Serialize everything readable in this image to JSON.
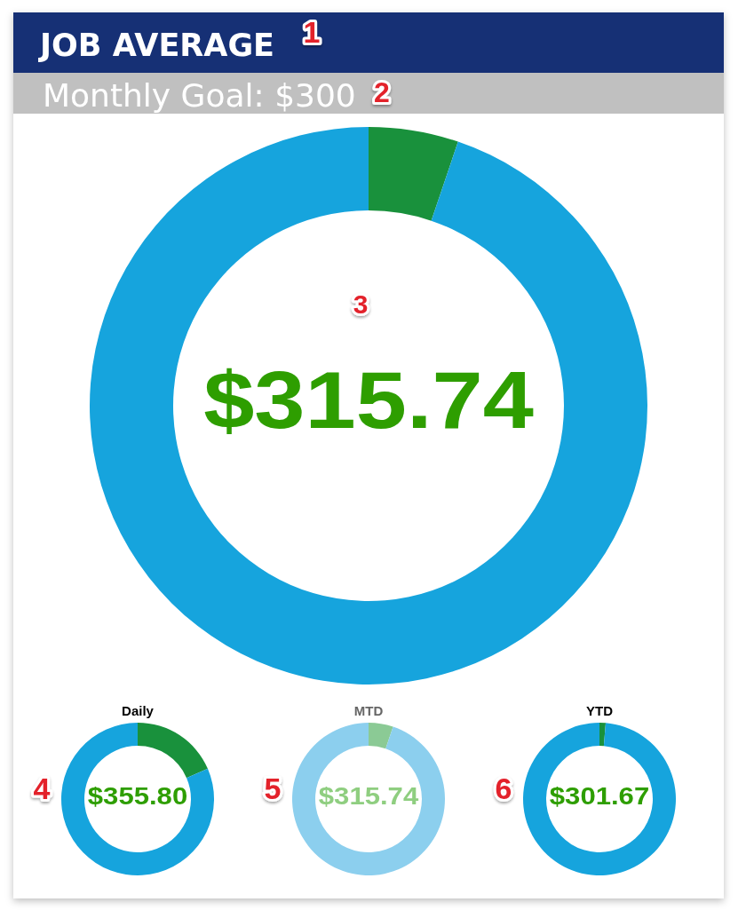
{
  "chart_data": [
    {
      "type": "donut",
      "title": "JOB AVERAGE",
      "subtitle": "Monthly Goal: $300",
      "categories": [
        null,
        null
      ],
      "values": [
        5.2,
        94.8
      ],
      "colors": [
        "#19913c",
        "#16a4dd"
      ],
      "annotations": [
        "$315.74",
        "1",
        "2",
        "3"
      ]
    },
    {
      "type": "donut",
      "title": "Daily",
      "categories": [
        null,
        null
      ],
      "values": [
        18.5,
        81.5
      ],
      "colors": [
        "#19913c",
        "#16a4dd"
      ],
      "annotations": [
        "$355.80",
        "4"
      ]
    },
    {
      "type": "donut",
      "title": "MTD",
      "categories": [
        null,
        null
      ],
      "values": [
        5.2,
        94.8
      ],
      "colors": [
        "#8bca95",
        "#8ccfee"
      ],
      "annotations": [
        "$315.74",
        "5"
      ]
    },
    {
      "type": "donut",
      "title": "YTD",
      "categories": [
        null,
        null
      ],
      "values": [
        1.3,
        98.7
      ],
      "colors": [
        "#19913c",
        "#16a4dd"
      ],
      "annotations": [
        "$301.67",
        "6"
      ]
    }
  ]
}
